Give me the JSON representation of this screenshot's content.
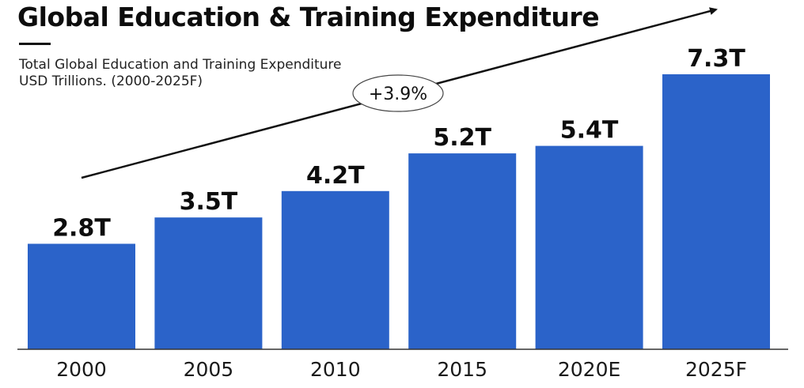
{
  "title": "Global Education & Training Expenditure",
  "subtitle_line1": "Total Global Education and Training Expenditure",
  "subtitle_line2": "USD Trillions. (2000-2025F)",
  "growth_annotation": "+3.9%",
  "colors": {
    "bar": "#2b63c9",
    "text": "#0d0d0d",
    "axis": "#333333"
  },
  "chart_data": {
    "type": "bar",
    "title": "Global Education & Training Expenditure",
    "subtitle": "Total Global Education and Training Expenditure USD Trillions. (2000-2025F)",
    "categories": [
      "2000",
      "2005",
      "2010",
      "2015",
      "2020E",
      "2025F"
    ],
    "values": [
      2.8,
      3.5,
      4.2,
      5.2,
      5.4,
      7.3
    ],
    "data_labels": [
      "2.8T",
      "3.5T",
      "4.2T",
      "5.2T",
      "5.4T",
      "7.3T"
    ],
    "xlabel": "",
    "ylabel": "",
    "ylim": [
      0,
      7.3
    ],
    "grid": false,
    "trend_annotation": "+3.9%"
  }
}
